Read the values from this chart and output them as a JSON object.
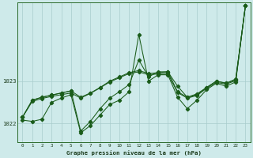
{
  "title": "Graphe pression niveau de la mer (hPa)",
  "bg_color": "#ceeaea",
  "grid_color": "#a8cccc",
  "line_color": "#1a5c1a",
  "ytick_labels": [
    "1022",
    "1023"
  ],
  "ytick_values": [
    1022.0,
    1023.0
  ],
  "xlim": [
    -0.5,
    23.5
  ],
  "ylim": [
    1021.55,
    1024.85
  ],
  "series1_x": [
    0,
    1,
    2,
    3,
    4,
    5,
    6,
    7,
    8,
    9,
    10,
    11,
    12,
    13,
    14,
    15,
    16,
    17,
    18,
    19,
    20,
    21,
    22,
    23
  ],
  "series1_y": [
    1022.15,
    1022.55,
    1022.62,
    1022.67,
    1022.72,
    1022.77,
    1021.82,
    1022.05,
    1022.35,
    1022.6,
    1022.75,
    1022.92,
    1023.5,
    1023.1,
    1023.22,
    1023.22,
    1022.88,
    1022.62,
    1022.7,
    1022.85,
    1023.0,
    1022.95,
    1023.05,
    1024.78
  ],
  "series2_x": [
    0,
    1,
    2,
    3,
    4,
    5,
    6,
    7,
    8,
    9,
    10,
    11,
    12,
    13,
    14,
    15,
    16,
    17,
    18,
    19,
    20,
    21,
    22,
    23
  ],
  "series2_y": [
    1022.15,
    1022.55,
    1022.62,
    1022.67,
    1022.72,
    1022.77,
    1022.62,
    1022.72,
    1022.85,
    1023.0,
    1023.1,
    1023.2,
    1023.25,
    1023.18,
    1023.2,
    1023.22,
    1022.75,
    1022.62,
    1022.68,
    1022.85,
    1023.0,
    1022.95,
    1023.03,
    1024.78
  ],
  "series3_x": [
    0,
    1,
    2,
    3,
    4,
    5,
    6,
    7,
    8,
    9,
    10,
    11,
    12,
    13,
    14,
    15,
    16,
    17,
    18,
    19,
    20,
    21,
    22,
    23
  ],
  "series3_y": [
    1022.15,
    1022.52,
    1022.59,
    1022.64,
    1022.68,
    1022.72,
    1022.6,
    1022.71,
    1022.84,
    1022.98,
    1023.08,
    1023.18,
    1023.22,
    1023.15,
    1023.17,
    1023.18,
    1022.73,
    1022.6,
    1022.66,
    1022.83,
    1022.97,
    1022.93,
    1023.01,
    1024.78
  ],
  "series4_x": [
    0,
    1,
    2,
    3,
    4,
    5,
    6,
    7,
    8,
    9,
    10,
    11,
    12,
    13,
    14,
    15,
    16,
    17,
    18,
    19,
    20,
    21,
    22,
    23
  ],
  "series4_y": [
    1022.08,
    1022.05,
    1022.1,
    1022.5,
    1022.6,
    1022.68,
    1021.78,
    1021.95,
    1022.2,
    1022.45,
    1022.55,
    1022.75,
    1024.1,
    1023.0,
    1023.15,
    1023.15,
    1022.62,
    1022.35,
    1022.55,
    1022.8,
    1022.95,
    1022.88,
    1022.98,
    1024.78
  ]
}
